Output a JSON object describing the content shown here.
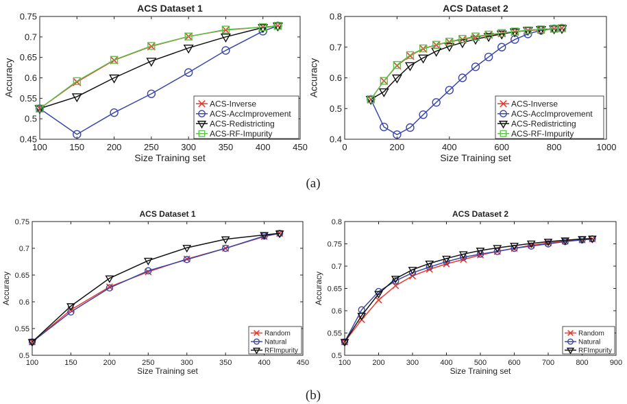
{
  "figure_labels": [
    "(a)",
    "(b)"
  ],
  "colors": {
    "red": "#e8392d",
    "blue": "#3a46a8",
    "black": "#111111",
    "green": "#5cc24a",
    "axis": "#222222"
  },
  "chart_data": [
    {
      "type": "line",
      "title": "ACS Dataset 1",
      "xlabel": "Size Training set",
      "ylabel": "Accuracy",
      "xlim": [
        100,
        450
      ],
      "ylim": [
        0.45,
        0.75
      ],
      "xticks": [
        100,
        150,
        200,
        250,
        300,
        350,
        400,
        450
      ],
      "yticks": [
        0.45,
        0.5,
        0.55,
        0.6,
        0.65,
        0.7,
        0.75
      ],
      "xtick_labels": [
        "100",
        "150",
        "200",
        "250",
        "300",
        "350",
        "400",
        "450"
      ],
      "ytick_labels": [
        "0.45",
        "0.5",
        "0.55",
        "0.6",
        "0.65",
        "0.7",
        "0.75"
      ],
      "x": [
        100,
        150,
        200,
        250,
        300,
        350,
        400,
        420
      ],
      "legend_position": "bottom-right",
      "series": [
        {
          "name": "ACS-Inverse",
          "color": "#e8392d",
          "marker": "x",
          "values": [
            0.525,
            0.59,
            0.643,
            0.677,
            0.701,
            0.717,
            0.724,
            0.727
          ]
        },
        {
          "name": "ACS-AccImprovement",
          "color": "#3a46a8",
          "marker": "o",
          "values": [
            0.525,
            0.462,
            0.515,
            0.561,
            0.613,
            0.667,
            0.714,
            0.727
          ]
        },
        {
          "name": "ACS-Redistricting",
          "color": "#111111",
          "marker": "v",
          "values": [
            0.525,
            0.554,
            0.6,
            0.641,
            0.673,
            0.7,
            0.723,
            0.727
          ]
        },
        {
          "name": "ACS-RF-Impurity",
          "color": "#5cc24a",
          "marker": "s",
          "values": [
            0.525,
            0.592,
            0.644,
            0.678,
            0.701,
            0.718,
            0.724,
            0.727
          ]
        }
      ]
    },
    {
      "type": "line",
      "title": "ACS Dataset 2",
      "xlabel": "Size Training set",
      "ylabel": "Accuracy",
      "xlim": [
        0,
        1000
      ],
      "ylim": [
        0.4,
        0.8
      ],
      "xticks": [
        0,
        200,
        400,
        600,
        800,
        1000
      ],
      "yticks": [
        0.4,
        0.5,
        0.6,
        0.7,
        0.8
      ],
      "xtick_labels": [
        "0",
        "200",
        "400",
        "600",
        "800",
        "1000"
      ],
      "ytick_labels": [
        "0.4",
        "0.5",
        "0.6",
        "0.7",
        "0.8"
      ],
      "x": [
        100,
        150,
        200,
        250,
        300,
        350,
        400,
        450,
        500,
        550,
        600,
        650,
        700,
        750,
        800,
        830
      ],
      "legend_position": "bottom-right",
      "series": [
        {
          "name": "ACS-Inverse",
          "color": "#e8392d",
          "marker": "x",
          "values": [
            0.53,
            0.59,
            0.64,
            0.672,
            0.695,
            0.707,
            0.717,
            0.725,
            0.733,
            0.74,
            0.745,
            0.75,
            0.754,
            0.757,
            0.76,
            0.762
          ]
        },
        {
          "name": "ACS-AccImprovement",
          "color": "#3a46a8",
          "marker": "o",
          "values": [
            0.53,
            0.44,
            0.415,
            0.438,
            0.48,
            0.52,
            0.56,
            0.6,
            0.636,
            0.668,
            0.7,
            0.725,
            0.743,
            0.755,
            0.76,
            0.762
          ]
        },
        {
          "name": "ACS-Redistricting",
          "color": "#111111",
          "marker": "v",
          "values": [
            0.53,
            0.555,
            0.6,
            0.64,
            0.665,
            0.687,
            0.703,
            0.715,
            0.726,
            0.735,
            0.743,
            0.75,
            0.755,
            0.758,
            0.76,
            0.761
          ]
        },
        {
          "name": "ACS-RF-Impurity",
          "color": "#5cc24a",
          "marker": "s",
          "values": [
            0.53,
            0.59,
            0.642,
            0.674,
            0.696,
            0.708,
            0.718,
            0.727,
            0.735,
            0.741,
            0.746,
            0.751,
            0.755,
            0.758,
            0.76,
            0.762
          ]
        }
      ]
    },
    {
      "type": "line",
      "title": "ACS Dataset 1",
      "xlabel": "Size Training set",
      "ylabel": "Accuracy",
      "xlim": [
        100,
        450
      ],
      "ylim": [
        0.5,
        0.75
      ],
      "xticks": [
        100,
        150,
        200,
        250,
        300,
        350,
        400,
        450
      ],
      "yticks": [
        0.5,
        0.55,
        0.6,
        0.65,
        0.7,
        0.75
      ],
      "xtick_labels": [
        "100",
        "150",
        "200",
        "250",
        "300",
        "350",
        "400",
        "450"
      ],
      "ytick_labels": [
        "0.5",
        "0.55",
        "0.6",
        "0.65",
        "0.7",
        "0.75"
      ],
      "x": [
        100,
        150,
        200,
        250,
        300,
        350,
        400,
        420
      ],
      "legend_position": "bottom-right",
      "series": [
        {
          "name": "Random",
          "color": "#e8392d",
          "marker": "x",
          "values": [
            0.525,
            0.585,
            0.628,
            0.656,
            0.68,
            0.7,
            0.722,
            0.728
          ]
        },
        {
          "name": "Natural",
          "color": "#3a46a8",
          "marker": "o",
          "values": [
            0.525,
            0.581,
            0.626,
            0.658,
            0.679,
            0.7,
            0.723,
            0.728
          ]
        },
        {
          "name": "RFImpurity",
          "color": "#111111",
          "marker": "v",
          "values": [
            0.525,
            0.592,
            0.644,
            0.677,
            0.701,
            0.717,
            0.725,
            0.728
          ]
        }
      ]
    },
    {
      "type": "line",
      "title": "ACS Dataset 2",
      "xlabel": "Size Training set",
      "ylabel": "Accuracy",
      "xlim": [
        100,
        900
      ],
      "ylim": [
        0.5,
        0.8
      ],
      "xticks": [
        100,
        200,
        300,
        400,
        500,
        600,
        700,
        800,
        900
      ],
      "yticks": [
        0.5,
        0.55,
        0.6,
        0.65,
        0.7,
        0.75,
        0.8
      ],
      "xtick_labels": [
        "100",
        "200",
        "300",
        "400",
        "500",
        "600",
        "700",
        "800",
        "900"
      ],
      "ytick_labels": [
        "0.5",
        "0.55",
        "0.6",
        "0.65",
        "0.7",
        "0.75",
        "0.8"
      ],
      "x": [
        100,
        150,
        200,
        250,
        300,
        350,
        400,
        450,
        500,
        550,
        600,
        650,
        700,
        750,
        800,
        830
      ],
      "legend_position": "bottom-right",
      "series": [
        {
          "name": "Random",
          "color": "#e8392d",
          "marker": "x",
          "values": [
            0.53,
            0.58,
            0.624,
            0.656,
            0.678,
            0.693,
            0.705,
            0.715,
            0.725,
            0.733,
            0.74,
            0.747,
            0.752,
            0.756,
            0.759,
            0.761
          ]
        },
        {
          "name": "Natural",
          "color": "#3a46a8",
          "marker": "o",
          "values": [
            0.53,
            0.602,
            0.643,
            0.667,
            0.685,
            0.698,
            0.71,
            0.72,
            0.727,
            0.733,
            0.74,
            0.745,
            0.75,
            0.755,
            0.759,
            0.761
          ]
        },
        {
          "name": "RFImpurity",
          "color": "#111111",
          "marker": "v",
          "values": [
            0.53,
            0.589,
            0.638,
            0.672,
            0.692,
            0.706,
            0.717,
            0.727,
            0.735,
            0.741,
            0.746,
            0.751,
            0.755,
            0.758,
            0.761,
            0.762
          ]
        }
      ]
    }
  ]
}
